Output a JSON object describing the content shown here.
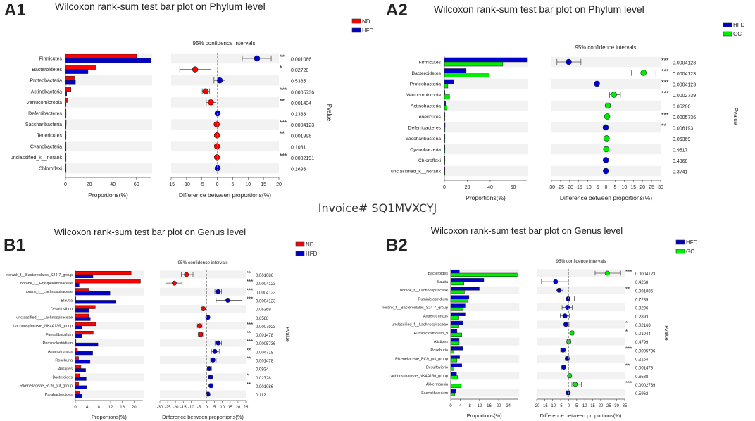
{
  "watermark": "Invoice# SQ1MVXCYJ",
  "colors": {
    "ND": "#ff0000",
    "HFD": "#0000cc",
    "GC": "#00ee00",
    "star": "#ff4040",
    "shade": "#f2f2f2"
  },
  "chart_data": [
    {
      "id": "A1",
      "type": "bar",
      "title": "Wilcoxon rank-sum test bar plot on Phylum level",
      "ci_title": "95% confidence intervals",
      "xlabel": "Proportions(%)",
      "ci_xlabel": "Difference between proportions(%)",
      "ylabel_right": "Pvalue",
      "groups": [
        {
          "name": "ND",
          "color": "#ff0000"
        },
        {
          "name": "HFD",
          "color": "#0000cc"
        }
      ],
      "bar_range": [
        0,
        72
      ],
      "bar_ticks": [
        "0",
        "20",
        "40",
        "60"
      ],
      "ci_range": [
        -15,
        20
      ],
      "ci_ticks": [
        "-15",
        "-10",
        "-5",
        "0",
        "5",
        "10",
        "15",
        "20"
      ],
      "rows": [
        {
          "name": "Firmicutes",
          "values": [
            60,
            72
          ],
          "diff": 12.9,
          "ci": [
            8.1,
            17.5
          ],
          "sig": "**",
          "pvalue": "0.001086"
        },
        {
          "name": "Bacteroidetes",
          "values": [
            26,
            19
          ],
          "diff": -7.2,
          "ci": [
            -12.2,
            -2.1
          ],
          "sig": "*",
          "pvalue": "0.02728"
        },
        {
          "name": "Proteobacteria",
          "values": [
            7.5,
            8.4
          ],
          "diff": 0.8,
          "ci": [
            -1.1,
            2.5
          ],
          "sig": "",
          "pvalue": "0.5365"
        },
        {
          "name": "Actinobacteria",
          "values": [
            4.6,
            1
          ],
          "diff": -3.8,
          "ci": [
            -4.9,
            -2.5
          ],
          "sig": "***",
          "pvalue": "0.0005736"
        },
        {
          "name": "Verrucomicrobia",
          "values": [
            2.1,
            0.2
          ],
          "diff": -2.1,
          "ci": [
            -3.6,
            -0.5
          ],
          "sig": "**",
          "pvalue": "0.001434"
        },
        {
          "name": "Deferribacteres",
          "values": [
            0.5,
            0.5
          ],
          "diff": 0.1,
          "ci": [
            -0.2,
            0.4
          ],
          "sig": "",
          "pvalue": "0.1333"
        },
        {
          "name": "Saccharibacteria",
          "values": [
            0.6,
            0.4
          ],
          "diff": -0.2,
          "ci": [
            -0.5,
            0.1
          ],
          "sig": "***",
          "pvalue": "0.0004123"
        },
        {
          "name": "Tenericutes",
          "values": [
            0.5,
            0.3
          ],
          "diff": -0.1,
          "ci": [
            -0.4,
            0.2
          ],
          "sig": "**",
          "pvalue": "0.001998"
        },
        {
          "name": "Cyanobacteria",
          "values": [
            0.4,
            0.3
          ],
          "diff": -0.1,
          "ci": [
            -0.4,
            0.2
          ],
          "sig": "",
          "pvalue": "0.1081"
        },
        {
          "name": "unclassified_k__norank",
          "values": [
            0.4,
            0.1
          ],
          "diff": -0.1,
          "ci": [
            -0.4,
            0.2
          ],
          "sig": "***",
          "pvalue": "0.0002191"
        },
        {
          "name": "Chloroflexi",
          "values": [
            0.1,
            0.2
          ],
          "diff": 0.1,
          "ci": [
            -0.2,
            0.4
          ],
          "sig": "",
          "pvalue": "0.1693"
        }
      ]
    },
    {
      "id": "A2",
      "type": "bar",
      "title": "Wilcoxon rank-sum test bar plot on Phylum level",
      "ci_title": "95% confidence intervals",
      "xlabel": "Proportions(%)",
      "ci_xlabel": "Difference between proportions(%)",
      "ylabel_right": "Pvalue",
      "groups": [
        {
          "name": "HFD",
          "color": "#0000cc"
        },
        {
          "name": "GC",
          "color": "#00ee00"
        }
      ],
      "bar_range": [
        0,
        72
      ],
      "bar_ticks": [
        "0",
        "20",
        "40",
        "60"
      ],
      "ci_range": [
        -30,
        30
      ],
      "ci_ticks": [
        "-30",
        "-25",
        "-20",
        "-15",
        "-10",
        "-5",
        "0",
        "5",
        "10",
        "15",
        "20",
        "25",
        "30"
      ],
      "rows": [
        {
          "name": "Firmicutes",
          "values": [
            72,
            51
          ],
          "diff": -20.5,
          "ci": [
            -27,
            -13.8
          ],
          "sig": "***",
          "pvalue": "0.0004123"
        },
        {
          "name": "Bacteroidetes",
          "values": [
            19,
            39
          ],
          "diff": 20.6,
          "ci": [
            14,
            27.4
          ],
          "sig": "***",
          "pvalue": "0.0004123"
        },
        {
          "name": "Proteobacteria",
          "values": [
            8.2,
            3
          ],
          "diff": -5,
          "ci": [
            -5.6,
            -4.4
          ],
          "sig": "***",
          "pvalue": "0.0004123"
        },
        {
          "name": "Verrucomicrobia",
          "values": [
            0.3,
            4.5
          ],
          "diff": 4.3,
          "ci": [
            1.9,
            7.9
          ],
          "sig": "***",
          "pvalue": "0.0002739"
        },
        {
          "name": "Actinobacteria",
          "values": [
            1,
            2
          ],
          "diff": 1,
          "ci": [
            0.3,
            1.7
          ],
          "sig": "",
          "pvalue": "0.05206"
        },
        {
          "name": "Tenericutes",
          "values": [
            0.5,
            0.5
          ],
          "diff": 0.6,
          "ci": [
            0.1,
            1.1
          ],
          "sig": "***",
          "pvalue": "0.0005736"
        },
        {
          "name": "Deferribacteres",
          "values": [
            0.6,
            0.3
          ],
          "diff": -0.2,
          "ci": [
            -0.6,
            0.2
          ],
          "sig": "**",
          "pvalue": "0.006193"
        },
        {
          "name": "Saccharibacteria",
          "values": [
            0.4,
            0.5
          ],
          "diff": 0.3,
          "ci": [
            -0.2,
            0.8
          ],
          "sig": "",
          "pvalue": "0.06369"
        },
        {
          "name": "Cyanobacteria",
          "values": [
            0.3,
            0.4
          ],
          "diff": 0.1,
          "ci": [
            -0.4,
            0.6
          ],
          "sig": "",
          "pvalue": "0.9517"
        },
        {
          "name": "Chloroflexi",
          "values": [
            0.3,
            0.2
          ],
          "diff": -0.1,
          "ci": [
            -0.5,
            0.3
          ],
          "sig": "",
          "pvalue": "0.4968"
        },
        {
          "name": "unclassified_k__norank",
          "values": [
            0.3,
            0.1
          ],
          "diff": -0.1,
          "ci": [
            -0.5,
            0.3
          ],
          "sig": "",
          "pvalue": "0.3741"
        }
      ]
    },
    {
      "id": "B1",
      "type": "bar",
      "title": "Wilcoxon rank-sum test bar plot on Genus level",
      "ci_title": "95% confidence intervals",
      "xlabel": "Proportions(%)",
      "ci_xlabel": "Difference between proportions(%)",
      "ylabel_right": "Pvalue",
      "groups": [
        {
          "name": "ND",
          "color": "#ff0000"
        },
        {
          "name": "HFD",
          "color": "#0000cc"
        }
      ],
      "bar_range": [
        0,
        23
      ],
      "bar_ticks": [
        "0",
        "4",
        "8",
        "12",
        "16",
        "20"
      ],
      "ci_range": [
        -30,
        25
      ],
      "ci_ticks": [
        "-30",
        "-25",
        "-20",
        "-15",
        "-10",
        "-5",
        "0",
        "5",
        "10",
        "15",
        "20",
        "25"
      ],
      "rows": [
        {
          "name": "norank_f__Bacteroidales_S24-7_group",
          "values": [
            19,
            6
          ],
          "diff": -13,
          "ci": [
            -16.3,
            -8.8
          ],
          "sig": "**",
          "pvalue": "0.001086"
        },
        {
          "name": "norank_f__Erysipelotrichaceae",
          "values": [
            22.2,
            1.3
          ],
          "diff": -20.8,
          "ci": [
            -26.2,
            -15.7
          ],
          "sig": "***",
          "pvalue": "0.0004123"
        },
        {
          "name": "norank_f__Lachnospiraceae",
          "values": [
            4.6,
            11.8
          ],
          "diff": 7.3,
          "ci": [
            5.2,
            9.4
          ],
          "sig": "***",
          "pvalue": "0.0004123"
        },
        {
          "name": "Blautia",
          "values": [
            0.2,
            13.7
          ],
          "diff": 13.5,
          "ci": [
            6,
            22.6
          ],
          "sig": "***",
          "pvalue": "0.0004123"
        },
        {
          "name": "Desulfovibrio",
          "values": [
            6.8,
            4.6
          ],
          "diff": -2.2,
          "ci": [
            -3.5,
            -0.5
          ],
          "sig": "",
          "pvalue": "0.06369"
        },
        {
          "name": "unclassified_f__Lachnospiraceae",
          "values": [
            4.5,
            5.1
          ],
          "diff": 0.7,
          "ci": [
            0,
            1.6
          ],
          "sig": "",
          "pvalue": "0.6588"
        },
        {
          "name": "Lachnospiraceae_NK4A136_group",
          "values": [
            7,
            2.3
          ],
          "diff": -4.6,
          "ci": [
            -6,
            -3
          ],
          "sig": "***",
          "pvalue": "0.0007923"
        },
        {
          "name": "Faecalibaculum",
          "values": [
            6.1,
            2.1
          ],
          "diff": -3.9,
          "ci": [
            -5.5,
            -2.5
          ],
          "sig": "**",
          "pvalue": "0.001478"
        },
        {
          "name": "Ruminiclostridium",
          "values": [
            0.2,
            7.7
          ],
          "diff": 7.3,
          "ci": [
            5.3,
            9.5
          ],
          "sig": "***",
          "pvalue": "0.0005736"
        },
        {
          "name": "Anaerotruncus",
          "values": [
            0.7,
            5.9
          ],
          "diff": 5.2,
          "ci": [
            3,
            8
          ],
          "sig": "**",
          "pvalue": "0.004718"
        },
        {
          "name": "Roseburia",
          "values": [
            1.1,
            5
          ],
          "diff": 4,
          "ci": [
            2.5,
            6
          ],
          "sig": "**",
          "pvalue": "0.001478"
        },
        {
          "name": "Alistipes",
          "values": [
            1.9,
            3.5
          ],
          "diff": 1.6,
          "ci": [
            0.5,
            3
          ],
          "sig": "",
          "pvalue": "0.0934"
        },
        {
          "name": "Bacteroides",
          "values": [
            1.4,
            3.7
          ],
          "diff": 2.4,
          "ci": [
            1,
            3.7
          ],
          "sig": "*",
          "pvalue": "0.02728"
        },
        {
          "name": "Rikenellaceae_RC9_gut_group",
          "values": [
            1.1,
            3.8
          ],
          "diff": 2.7,
          "ci": [
            2,
            3.5
          ],
          "sig": "**",
          "pvalue": "0.001086"
        },
        {
          "name": "Parabacteroides",
          "values": [
            1.5,
            2.2
          ],
          "diff": 0.8,
          "ci": [
            0.2,
            1.4
          ],
          "sig": "",
          "pvalue": "0.112"
        }
      ]
    },
    {
      "id": "B2",
      "type": "bar",
      "title": "Wilcoxon rank-sum test bar plot on Genus level",
      "ci_title": "95% confidence intervals",
      "xlabel": "Proportions(%)",
      "ci_xlabel": "Difference between proportions(%)",
      "ylabel_right": "Pvalue",
      "groups": [
        {
          "name": "HFD",
          "color": "#0000cc"
        },
        {
          "name": "GC",
          "color": "#00ee00"
        }
      ],
      "bar_range": [
        0,
        28
      ],
      "bar_ticks": [
        "0",
        "4",
        "8",
        "12",
        "16",
        "20",
        "24"
      ],
      "ci_range": [
        -20,
        35
      ],
      "ci_ticks": [
        "-20",
        "-15",
        "-10",
        "-5",
        "0",
        "5",
        "10",
        "15",
        "20",
        "25",
        "30",
        "35"
      ],
      "rows": [
        {
          "name": "Bacteroides",
          "values": [
            3.6,
            27.7
          ],
          "diff": 24.1,
          "ci": [
            16.5,
            32.5
          ],
          "sig": "***",
          "pvalue": "0.0004123"
        },
        {
          "name": "Blautia",
          "values": [
            13.8,
            5.5
          ],
          "diff": -8.2,
          "ci": [
            -17,
            -0.3
          ],
          "sig": "",
          "pvalue": "0.4268"
        },
        {
          "name": "norank_f__Lachnospiraceae",
          "values": [
            11.9,
            5.7
          ],
          "diff": -6,
          "ci": [
            -7.9,
            -3.6
          ],
          "sig": "**",
          "pvalue": "0.001086"
        },
        {
          "name": "Ruminiclostridium",
          "values": [
            7.6,
            7.3
          ],
          "diff": -0.3,
          "ci": [
            -3.4,
            3.5
          ],
          "sig": "",
          "pvalue": "0.7239"
        },
        {
          "name": "norank_f__Bacteroidales_S24-7_group",
          "values": [
            6,
            5.1
          ],
          "diff": -0.7,
          "ci": [
            -4.1,
            2.2
          ],
          "sig": "",
          "pvalue": "0.9296"
        },
        {
          "name": "Anaerotruncus",
          "values": [
            6,
            3.4
          ],
          "diff": -2.3,
          "ci": [
            -5.3,
            0.4
          ],
          "sig": "",
          "pvalue": "0.2893"
        },
        {
          "name": "unclassified_f__Lachnospiraceae",
          "values": [
            5.2,
            3.4
          ],
          "diff": -1.8,
          "ci": [
            -3.5,
            0.2
          ],
          "sig": "*",
          "pvalue": "0.02168"
        },
        {
          "name": "Ruminiclostridium_9",
          "values": [
            2.6,
            4.6
          ],
          "diff": 2,
          "ci": [
            0.9,
            3.2
          ],
          "sig": "*",
          "pvalue": "0.01044"
        },
        {
          "name": "Alistipes",
          "values": [
            3.5,
            3.5
          ],
          "diff": 0.1,
          "ci": [
            -1,
            1.2
          ],
          "sig": "",
          "pvalue": "0.4799"
        },
        {
          "name": "Roseburia",
          "values": [
            5.1,
            1.4
          ],
          "diff": -3.5,
          "ci": [
            -5,
            -2
          ],
          "sig": "***",
          "pvalue": "0.0005736"
        },
        {
          "name": "Rikenellaceae_RC9_gut_group",
          "values": [
            3.7,
            2.6
          ],
          "diff": -0.9,
          "ci": [
            -2,
            0.2
          ],
          "sig": "",
          "pvalue": "0.2164"
        },
        {
          "name": "Desulfovibrio",
          "values": [
            4.6,
            1.4
          ],
          "diff": -3.1,
          "ci": [
            -4.3,
            -1.8
          ],
          "sig": "**",
          "pvalue": "0.001478"
        },
        {
          "name": "Lachnospiraceae_NK4A136_group",
          "values": [
            2.4,
            2.9
          ],
          "diff": 0.6,
          "ci": [
            -0.3,
            1.5
          ],
          "sig": "",
          "pvalue": "0.6588"
        },
        {
          "name": "Akkermansia",
          "values": [
            0.1,
            4.4
          ],
          "diff": 4.1,
          "ci": [
            2,
            7.9
          ],
          "sig": "***",
          "pvalue": "0.0002739"
        },
        {
          "name": "Faecalibaculum",
          "values": [
            2.2,
            1.7
          ],
          "diff": -0.3,
          "ci": [
            -1.2,
            0.6
          ],
          "sig": "",
          "pvalue": "0.5962"
        }
      ]
    }
  ]
}
